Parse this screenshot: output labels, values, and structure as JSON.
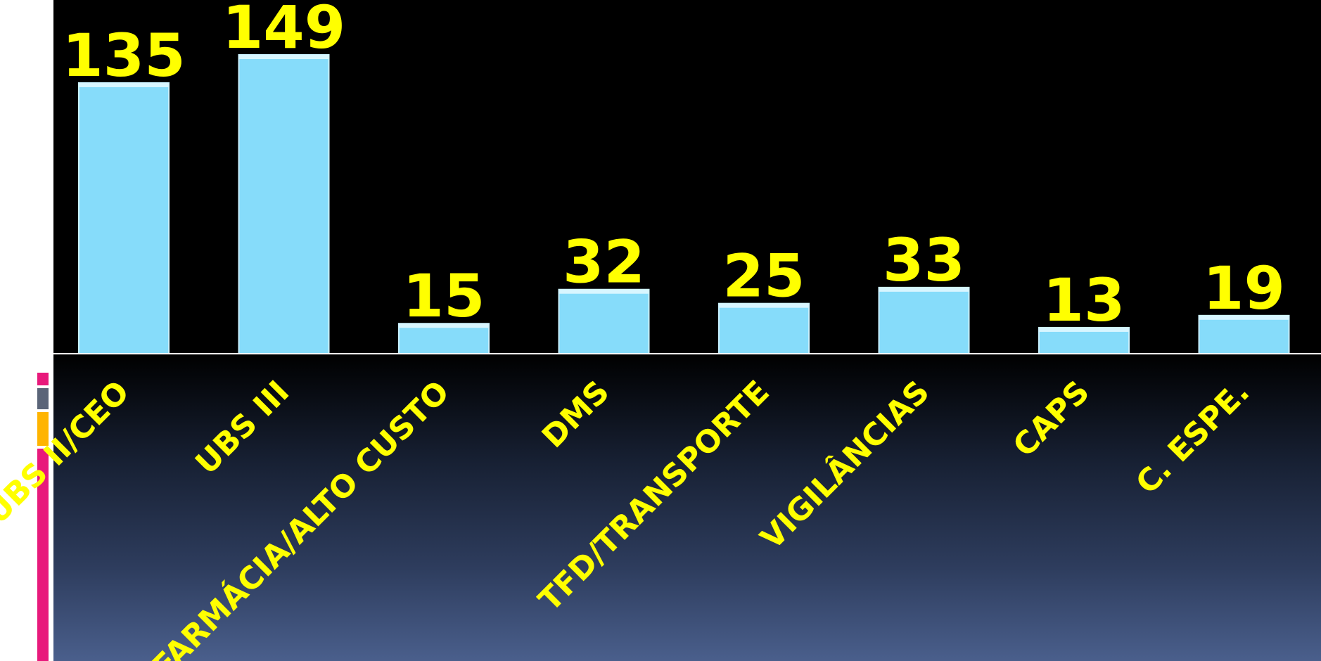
{
  "colors": {
    "bar_fill": "#86dcfa",
    "label_color": "#ffff00",
    "plot_background": "#000000",
    "accent_strip": [
      "#e8197b",
      "#5a6478",
      "#ffb400",
      "#e8197b"
    ]
  },
  "chart_data": {
    "type": "bar",
    "title": "",
    "xlabel": "",
    "ylabel": "",
    "categories": [
      "UBS II/CEO",
      "UBS III",
      "FARMÁCIA/ALTO CUSTO",
      "DMS",
      "TFD/TRANSPORTE",
      "VIGILÂNCIAS",
      "CAPS",
      "C. ESPE."
    ],
    "values": [
      135,
      149,
      15,
      32,
      25,
      33,
      13,
      19
    ],
    "value_labels": [
      "135",
      "149",
      "15",
      "32",
      "25",
      "33",
      "13",
      "19"
    ],
    "ylim": [
      0,
      149
    ],
    "grid": false,
    "legend": "none",
    "data_labels": "above-bars"
  }
}
